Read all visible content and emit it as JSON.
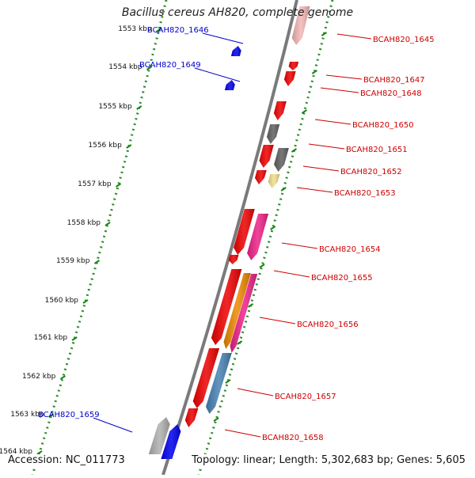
{
  "title": "Bacillus cereus AH820, complete genome",
  "footer": {
    "accession": "Accession: NC_011773",
    "summary": "Topology: linear; Length: 5,302,683 bp; Genes: 5,605"
  },
  "colors": {
    "axis": "#7a7a7a",
    "strand_dots": "#2e8b2e",
    "plus_label": "#cc0000",
    "minus_label": "#0000cc"
  },
  "scale": {
    "unit": "kbp",
    "ticks": [
      "1553 kbp",
      "1554 kbp",
      "1555 kbp",
      "1556 kbp",
      "1557 kbp",
      "1558 kbp",
      "1559 kbp",
      "1560 kbp",
      "1561 kbp",
      "1562 kbp",
      "1563 kbp",
      "1564 kbp"
    ]
  },
  "genes": [
    {
      "label": "BCAH820_1645",
      "strand": "+",
      "color": "#f4b6b6"
    },
    {
      "label": "BCAH820_1646",
      "strand": "-",
      "color": "#0000ee"
    },
    {
      "label": "BCAH820_1647",
      "strand": "+",
      "color": "#ee0000"
    },
    {
      "label": "BCAH820_1648",
      "strand": "+",
      "color": "#ee0000"
    },
    {
      "label": "BCAH820_1649",
      "strand": "-",
      "color": "#0000ee"
    },
    {
      "label": "BCAH820_1650",
      "strand": "+",
      "color": "#ee0000"
    },
    {
      "label": "BCAH820_1651",
      "strand": "+",
      "color": "#606060"
    },
    {
      "label": "BCAH820_1652",
      "strand": "+",
      "color": "#ee0000"
    },
    {
      "label": "BCAH820_1653",
      "strand": "+",
      "color": "#f0e08c"
    },
    {
      "label": "BCAH820_1654",
      "strand": "+",
      "color": "#ee2288"
    },
    {
      "label": "BCAH820_1655",
      "strand": "+",
      "color": "#ee0000"
    },
    {
      "label": "BCAH820_1656",
      "strand": "+",
      "color": "#ee8800"
    },
    {
      "label": "BCAH820_1657",
      "strand": "+",
      "color": "#4682b4"
    },
    {
      "label": "BCAH820_1658",
      "strand": "+",
      "color": "#ee0000"
    },
    {
      "label": "BCAH820_1659",
      "strand": "-",
      "color": "#0000ee"
    }
  ]
}
